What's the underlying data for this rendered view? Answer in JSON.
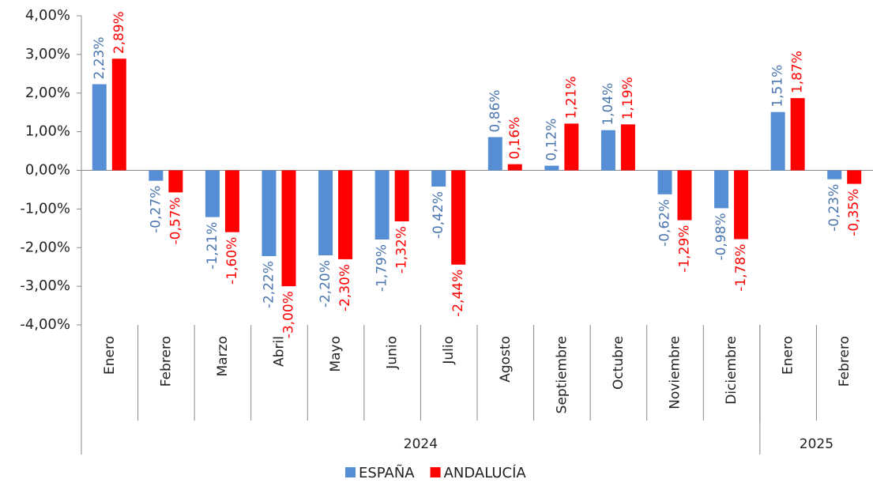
{
  "chart_data": {
    "type": "bar",
    "categories": [
      "Enero",
      "Febrero",
      "Marzo",
      "Abril",
      "Mayo",
      "Junio",
      "Julio",
      "Agosto",
      "Septiembre",
      "Octubre",
      "Noviembre",
      "Diciembre",
      "Enero",
      "Febrero"
    ],
    "x_groups": [
      {
        "label": "2024",
        "count": 12
      },
      {
        "label": "2025",
        "count": 2
      }
    ],
    "series": [
      {
        "name": "ESPAÑA",
        "color": "#558ed5",
        "label_color": "#4a76b0",
        "values": [
          2.23,
          -0.27,
          -1.21,
          -2.22,
          -2.2,
          -1.79,
          -0.42,
          0.86,
          0.12,
          1.04,
          -0.62,
          -0.98,
          1.51,
          -0.23
        ],
        "value_labels": [
          "2,23%",
          "-0,27%",
          "-1,21%",
          "-2,22%",
          "-2,20%",
          "-1,79%",
          "-0,42%",
          "0,86%",
          "0,12%",
          "1,04%",
          "-0,62%",
          "-0,98%",
          "1,51%",
          "-0,23%"
        ]
      },
      {
        "name": "ANDALUCÍA",
        "color": "#ff0000",
        "label_color": "#ff0000",
        "values": [
          2.89,
          -0.57,
          -1.6,
          -3.0,
          -2.3,
          -1.32,
          -2.44,
          0.16,
          1.21,
          1.19,
          -1.29,
          -1.78,
          1.87,
          -0.35
        ],
        "value_labels": [
          "2,89%",
          "-0,57%",
          "-1,60%",
          "-3,00%",
          "-2,30%",
          "-1,32%",
          "-2,44%",
          "0,16%",
          "1,21%",
          "1,19%",
          "-1,29%",
          "-1,78%",
          "1,87%",
          "-0,35%"
        ]
      }
    ],
    "ylim": [
      -4,
      4
    ],
    "yticks": [
      {
        "value": -4,
        "label": "-4,00%"
      },
      {
        "value": -3,
        "label": "-3,00%"
      },
      {
        "value": -2,
        "label": "-2,00%"
      },
      {
        "value": -1,
        "label": "-1,00%"
      },
      {
        "value": 0,
        "label": "0,00%"
      },
      {
        "value": 1,
        "label": "1,00%"
      },
      {
        "value": 2,
        "label": "2,00%"
      },
      {
        "value": 3,
        "label": "3,00%"
      },
      {
        "value": 4,
        "label": "4,00%"
      }
    ],
    "grid": false,
    "legend": "bottom"
  }
}
